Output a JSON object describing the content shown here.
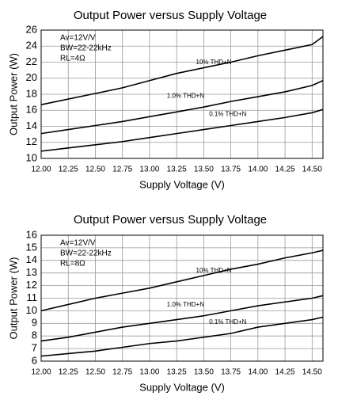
{
  "chart_data": [
    {
      "type": "line",
      "title": "Output Power versus Supply Voltage",
      "xlabel": "Supply Voltage (V)",
      "ylabel": "Output Power (W)",
      "annotations": [
        "Av=12V/V",
        "BW=22-22kHz",
        "RL=4Ω"
      ],
      "x": [
        12,
        12.25,
        12.5,
        12.75,
        13,
        13.25,
        13.5,
        13.75,
        14,
        14.25,
        14.5,
        14.6
      ],
      "series": [
        {
          "name": "10% THD+N",
          "color": "#000000",
          "values": [
            16.7,
            17.4,
            18.1,
            18.8,
            19.7,
            20.6,
            21.3,
            22.0,
            22.8,
            23.5,
            24.2,
            25.2
          ]
        },
        {
          "name": "1.0% THD+N",
          "color": "#000000",
          "values": [
            13.1,
            13.6,
            14.1,
            14.6,
            15.2,
            15.8,
            16.4,
            17.1,
            17.7,
            18.3,
            19.1,
            19.7
          ]
        },
        {
          "name": "0.1% THD+N",
          "color": "#000000",
          "values": [
            10.9,
            11.3,
            11.7,
            12.1,
            12.6,
            13.1,
            13.6,
            14.1,
            14.6,
            15.1,
            15.7,
            16.1
          ]
        }
      ],
      "xlim": [
        12,
        14.6
      ],
      "ylim": [
        10,
        26
      ],
      "xticks": [
        {
          "value": 12,
          "label": "12.00"
        },
        {
          "value": 12.25,
          "label": "12.25"
        },
        {
          "value": 12.5,
          "label": "12.50"
        },
        {
          "value": 12.75,
          "label": "12.75"
        },
        {
          "value": 13,
          "label": "13.00"
        },
        {
          "value": 13.25,
          "label": "13.25"
        },
        {
          "value": 13.5,
          "label": "13.50"
        },
        {
          "value": 13.75,
          "label": "13.75"
        },
        {
          "value": 14,
          "label": "14.00"
        },
        {
          "value": 14.25,
          "label": "14.25"
        },
        {
          "value": 14.5,
          "label": "14.50"
        }
      ],
      "yticks": [
        10,
        12,
        14,
        16,
        18,
        20,
        22,
        24,
        26
      ],
      "grid": true
    },
    {
      "type": "line",
      "title": "Output Power versus Supply Voltage",
      "xlabel": "Supply Voltage (V)",
      "ylabel": "Output Power (W)",
      "annotations": [
        "Av=12V/V",
        "BW=22-22kHz",
        "RL=8Ω"
      ],
      "x": [
        12,
        12.25,
        12.5,
        12.75,
        13,
        13.25,
        13.5,
        13.75,
        14,
        14.25,
        14.5,
        14.6
      ],
      "series": [
        {
          "name": "10% THD+N",
          "color": "#000000",
          "values": [
            10.0,
            10.5,
            11.0,
            11.4,
            11.8,
            12.3,
            12.8,
            13.3,
            13.7,
            14.2,
            14.6,
            14.8
          ]
        },
        {
          "name": "1.0% THD+N",
          "color": "#000000",
          "values": [
            7.6,
            7.9,
            8.3,
            8.7,
            9.0,
            9.3,
            9.6,
            10.0,
            10.4,
            10.7,
            11.0,
            11.2
          ]
        },
        {
          "name": "0.1% THD+N",
          "color": "#000000",
          "values": [
            6.4,
            6.6,
            6.8,
            7.1,
            7.4,
            7.6,
            7.9,
            8.2,
            8.7,
            9.0,
            9.3,
            9.5
          ]
        }
      ],
      "xlim": [
        12,
        14.6
      ],
      "ylim": [
        6,
        16
      ],
      "xticks": [
        {
          "value": 12,
          "label": "12.00"
        },
        {
          "value": 12.25,
          "label": "12.25"
        },
        {
          "value": 12.5,
          "label": "12.50"
        },
        {
          "value": 12.75,
          "label": "12.75"
        },
        {
          "value": 13,
          "label": "13.00"
        },
        {
          "value": 13.25,
          "label": "13.25"
        },
        {
          "value": 13.5,
          "label": "13.50"
        },
        {
          "value": 13.75,
          "label": "13.75"
        },
        {
          "value": 14,
          "label": "14.00"
        },
        {
          "value": 14.25,
          "label": "14.25"
        },
        {
          "value": 14.5,
          "label": "14.50"
        }
      ],
      "yticks": [
        6,
        7,
        8,
        9,
        10,
        11,
        12,
        13,
        14,
        15,
        16
      ],
      "grid": true
    }
  ]
}
